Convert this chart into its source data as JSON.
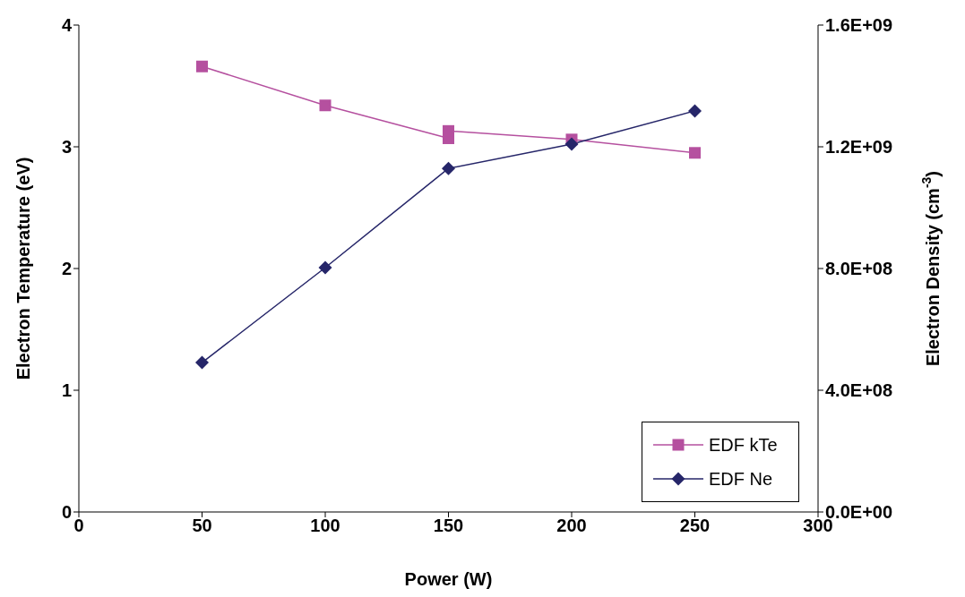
{
  "chart_data": {
    "type": "line",
    "xlabel": "Power (W)",
    "ylabel": "Electron Temperature (eV)",
    "y2label": "Electron Density (cm$^{-3}$)",
    "xlim": [
      0,
      300
    ],
    "xticks": [
      0,
      50,
      100,
      150,
      200,
      250,
      300
    ],
    "ylim": [
      0,
      4
    ],
    "yticks": [
      0,
      1,
      2,
      3,
      4
    ],
    "y2lim": [
      0,
      1600000000
    ],
    "y2ticks": [
      {
        "value": 0,
        "label": "0.0E+00"
      },
      {
        "value": 400000000,
        "label": "4.0E+08"
      },
      {
        "value": 800000000,
        "label": "8.0E+08"
      },
      {
        "value": 1200000000,
        "label": "1.2E+09"
      },
      {
        "value": 1600000000,
        "label": "1.6E+09"
      }
    ],
    "series": [
      {
        "name": "EDF kTe",
        "color": "#b5509f",
        "marker": "square",
        "x": [
          50,
          100,
          150,
          150,
          200,
          250
        ],
        "values": [
          3.66,
          3.34,
          3.07,
          3.13,
          3.06,
          2.95
        ]
      },
      {
        "name": "EDF Ne",
        "color": "#262669",
        "marker": "diamond",
        "axis": "y2",
        "x": [
          50,
          100,
          150,
          200,
          250
        ],
        "values": [
          491000000,
          803000000,
          1129000000,
          1209000000,
          1318000000
        ]
      }
    ],
    "legend": "bottom right",
    "line_style": "solid"
  }
}
